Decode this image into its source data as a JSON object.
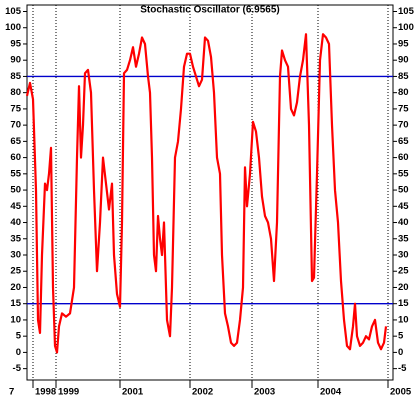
{
  "chart_data": {
    "type": "line",
    "title": "Stochastic Oscillator (6.9565)",
    "x": [
      0,
      1.5,
      3,
      4.5,
      5.5,
      6.5,
      7.5,
      9,
      10,
      11,
      12,
      13,
      14,
      15,
      16,
      17.5,
      19.5,
      21.5,
      23.5,
      25,
      26,
      27,
      28,
      29,
      30.5,
      32,
      33.5,
      35,
      36.5,
      38,
      39.5,
      41,
      42.5,
      43.5,
      45,
      46.5,
      47.5,
      48.5,
      50,
      51.5,
      53,
      54.5,
      56,
      57.5,
      59,
      60.5,
      61.5,
      62.5,
      63.5,
      64.5,
      65.5,
      66.5,
      67.5,
      68.5,
      70,
      71.5,
      72.5,
      74,
      75.5,
      77,
      78.5,
      80,
      81.5,
      83,
      84.5,
      86,
      87.5,
      89,
      90.5,
      92,
      93.5,
      95,
      96.5,
      97.5,
      99,
      100.5,
      102,
      103.5,
      105,
      106.5,
      108,
      109,
      110,
      111.5,
      113,
      114.5,
      116,
      117.5,
      119,
      120.5,
      122,
      123.5,
      125,
      126.5,
      127.5,
      129,
      130.5,
      132,
      133.5,
      135,
      136.5,
      138,
      139.5,
      141,
      142.5,
      143.5,
      145,
      146.5,
      148,
      149.5,
      151,
      152.5,
      154,
      155.5,
      157,
      158.5,
      160,
      161.5,
      163,
      164,
      165,
      166.5,
      168,
      169.5,
      171,
      172.5,
      174,
      175.5,
      177,
      178.5,
      179.5
    ],
    "series": [
      {
        "name": "Stochastic",
        "color": "#ff0000",
        "values": [
          79,
          83,
          78,
          50,
          10,
          6,
          30,
          52,
          50,
          55,
          63,
          20,
          2,
          0,
          8,
          12,
          11,
          12,
          20,
          60,
          82,
          60,
          70,
          86,
          87,
          80,
          50,
          25,
          40,
          60,
          52,
          44,
          52,
          30,
          18,
          14,
          40,
          86,
          87,
          90,
          94,
          88,
          92,
          97,
          95,
          85,
          80,
          60,
          30,
          25,
          42,
          35,
          30,
          40,
          10,
          5,
          20,
          60,
          65,
          75,
          88,
          92,
          92,
          88,
          85,
          82,
          84,
          97,
          96,
          91,
          80,
          60,
          55,
          30,
          12,
          8,
          3,
          2,
          3,
          10,
          20,
          57,
          45,
          55,
          71,
          68,
          60,
          48,
          42,
          40,
          35,
          22,
          40,
          85,
          93,
          90,
          88,
          75,
          73,
          77,
          85,
          90,
          98,
          70,
          22,
          23,
          55,
          90,
          98,
          97,
          95,
          70,
          50,
          40,
          22,
          10,
          2,
          1,
          8,
          15,
          5,
          2,
          3,
          5,
          4,
          8,
          10,
          3,
          1,
          3,
          8
        ]
      }
    ],
    "hlines": [
      85,
      15
    ],
    "hline_color": "#0000cc",
    "xlim": [
      0,
      183
    ],
    "ylim": [
      -8.5,
      107
    ],
    "xticks": [
      {
        "value": -10,
        "label": "7"
      },
      {
        "value": 3,
        "label": "1998"
      },
      {
        "value": 14.5,
        "label": "1999"
      },
      {
        "value": 46.5,
        "label": "2001"
      },
      {
        "value": 81.5,
        "label": "2002"
      },
      {
        "value": 112.5,
        "label": "2003"
      },
      {
        "value": 145.5,
        "label": "2004"
      },
      {
        "value": 180.5,
        "label": "2005"
      }
    ],
    "yticks": [
      -5,
      0,
      5,
      10,
      15,
      20,
      25,
      30,
      35,
      40,
      45,
      50,
      55,
      60,
      65,
      70,
      75,
      80,
      85,
      90,
      95,
      100,
      105
    ]
  }
}
